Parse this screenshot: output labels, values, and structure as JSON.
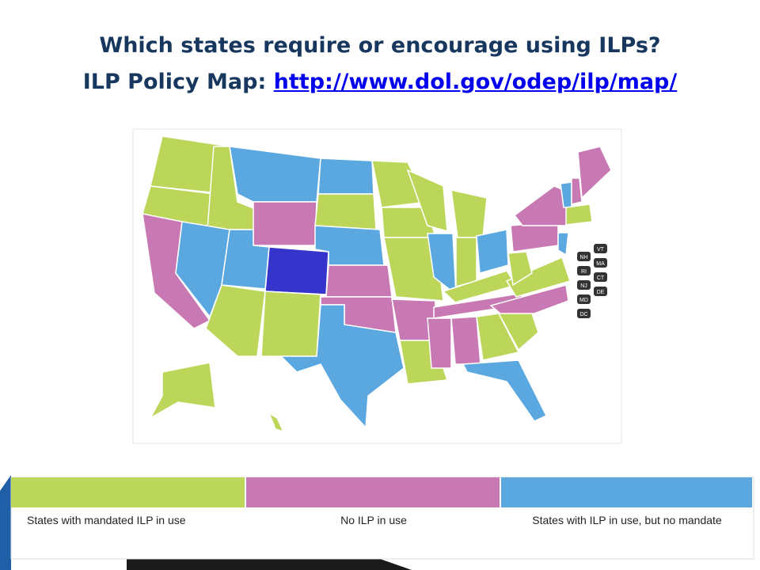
{
  "header": {
    "line1": "Which states require or encourage using ILPs?",
    "line2": "ILP Policy Map:",
    "link": "http://www.dol.gov/odep/ilp/map/"
  },
  "badges": [
    "NH",
    "VT",
    "RI",
    "MA",
    "NJ",
    "CT",
    "MD",
    "DE",
    "DC"
  ],
  "legend": [
    {
      "label": "States with mandated ILP in use",
      "color": "#bcd65a"
    },
    {
      "label": "No ILP in use",
      "color": "#c879b4"
    },
    {
      "label": "States with ILP in use, but no mandate",
      "color": "#5ba8e0"
    }
  ]
}
